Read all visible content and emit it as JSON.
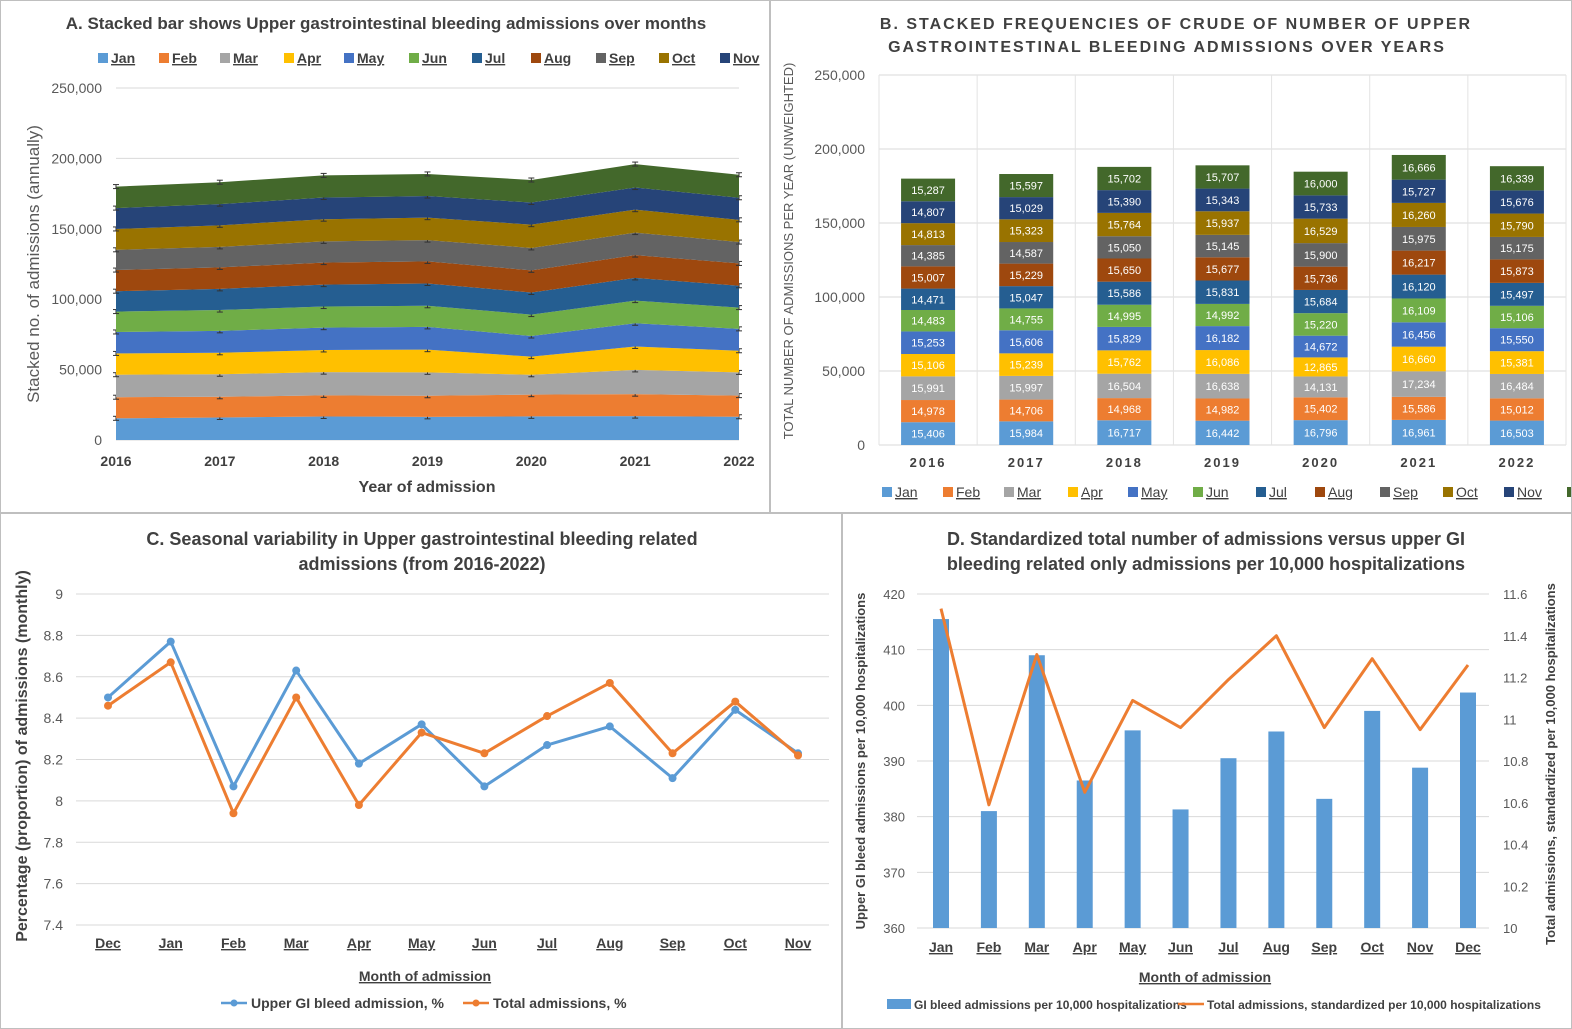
{
  "palette": {
    "Jan": "#5b9bd5",
    "Feb": "#ed7d31",
    "Mar": "#a5a5a5",
    "Apr": "#ffc000",
    "May": "#4472c4",
    "Jun": "#70ad47",
    "Jul": "#255e91",
    "Aug": "#9e480e",
    "Sep": "#636363",
    "Oct": "#997300",
    "Nov": "#264478",
    "Dec": "#43682b"
  },
  "chart_data": [
    {
      "id": "A",
      "type": "area",
      "title": "A. Stacked bar shows Upper gastrointestinal bleeding admissions over months",
      "xlabel": "Year of admission",
      "ylabel": "Stacked no. of admissions (annually)",
      "ylim": [
        0,
        250000
      ],
      "yticks": [
        "0",
        "50,000",
        "100,000",
        "150,000",
        "200,000",
        "250,000"
      ],
      "grid": true,
      "legend": "top",
      "categories": [
        "2016",
        "2017",
        "2018",
        "2019",
        "2020",
        "2021",
        "2022"
      ],
      "series_ref": "B"
    },
    {
      "id": "B",
      "type": "bar",
      "stacked": true,
      "title_lines": [
        "B. STACKED FREQUENCIES OF CRUDE OF NUMBER OF UPPER",
        "GASTROINTESTINAL BLEEDING ADMISSIONS OVER YEARS"
      ],
      "ylabel": "TOTAL NUMBER OF ADMISSIONS PER YEAR (UNWEIGHTED)",
      "ylim": [
        0,
        250000
      ],
      "yticks": [
        "0",
        "50,000",
        "100,000",
        "150,000",
        "200,000",
        "250,000"
      ],
      "grid": true,
      "legend": "bottom",
      "categories": [
        "2016",
        "2017",
        "2018",
        "2019",
        "2020",
        "2021",
        "2022"
      ],
      "series": [
        {
          "name": "Jan",
          "values": [
            15406,
            15984,
            16717,
            16442,
            16796,
            16961,
            16503
          ],
          "labels": [
            "15,406",
            "15,984",
            "16,717",
            "16,442",
            "16,796",
            "16,961",
            "16,503"
          ]
        },
        {
          "name": "Feb",
          "values": [
            14978,
            14706,
            14968,
            14982,
            15402,
            15586,
            15012
          ],
          "labels": [
            "14,978",
            "14,706",
            "14,968",
            "14,982",
            "15,402",
            "15,586",
            "15,012"
          ]
        },
        {
          "name": "Mar",
          "values": [
            15991,
            15997,
            16504,
            16638,
            14131,
            17234,
            16484
          ],
          "labels": [
            "15,991",
            "15,997",
            "16,504",
            "16,638",
            "14,131",
            "17,234",
            "16,484"
          ]
        },
        {
          "name": "Apr",
          "values": [
            15106,
            15239,
            15762,
            16086,
            12865,
            16660,
            15381
          ],
          "labels": [
            "15,106",
            "15,239",
            "15,762",
            "16,086",
            "12,865",
            "16,660",
            "15,381"
          ]
        },
        {
          "name": "May",
          "values": [
            15253,
            15606,
            15829,
            16182,
            14672,
            16456,
            15550
          ],
          "labels": [
            "15,253",
            "15,606",
            "15,829",
            "16,182",
            "14,672",
            "16,456",
            "15,550"
          ]
        },
        {
          "name": "Jun",
          "values": [
            14483,
            14755,
            14995,
            14992,
            15220,
            16109,
            15106
          ],
          "labels": [
            "14,483",
            "14,755",
            "14,995",
            "14,992",
            "15,220",
            "16,109",
            "15,106"
          ]
        },
        {
          "name": "Jul",
          "values": [
            14471,
            15047,
            15586,
            15831,
            15684,
            16120,
            15497
          ],
          "labels": [
            "14,471",
            "15,047",
            "15,586",
            "15,831",
            "15,684",
            "16,120",
            "15,497"
          ]
        },
        {
          "name": "Aug",
          "values": [
            15007,
            15229,
            15650,
            15677,
            15736,
            16217,
            15873
          ],
          "labels": [
            "15,007",
            "15,229",
            "15,650",
            "15,677",
            "15,736",
            "16,217",
            "15,873"
          ]
        },
        {
          "name": "Sep",
          "values": [
            14385,
            14587,
            15050,
            15145,
            15900,
            15975,
            15175
          ],
          "labels": [
            "14,385",
            "14,587",
            "15,050",
            "15,145",
            "15,900",
            "15,975",
            "15,175"
          ]
        },
        {
          "name": "Oct",
          "values": [
            14813,
            15323,
            15764,
            15937,
            16529,
            16260,
            15790
          ],
          "labels": [
            "14,813",
            "15,323",
            "15,764",
            "15,937",
            "16,529",
            "16,260",
            "15,790"
          ]
        },
        {
          "name": "Nov",
          "values": [
            14807,
            15029,
            15390,
            15343,
            15733,
            15727,
            15676
          ],
          "labels": [
            "14,807",
            "15,029",
            "15,390",
            "15,343",
            "15,733",
            "15,727",
            "15,676"
          ]
        },
        {
          "name": "Dec",
          "values": [
            15287,
            15597,
            15702,
            15707,
            16000,
            16666,
            16339
          ],
          "labels": [
            "15,287",
            "15,597",
            "15,702",
            "15,707",
            "16,000",
            "16,666",
            "16,339"
          ]
        }
      ]
    },
    {
      "id": "C",
      "type": "line",
      "title_lines": [
        "C. Seasonal variability in Upper gastrointestinal bleeding related",
        "admissions (from 2016-2022)"
      ],
      "xlabel": "Month of admission",
      "ylabel": "Percentage (proportion) of admissions (monthly)",
      "ylim": [
        7.4,
        9.0
      ],
      "yticks": [
        "7.4",
        "7.6",
        "7.8",
        "8",
        "8.2",
        "8.4",
        "8.6",
        "8.8",
        "9"
      ],
      "grid": true,
      "legend": "bottom",
      "categories": [
        "Dec",
        "Jan",
        "Feb",
        "Mar",
        "Apr",
        "May",
        "Jun",
        "Jul",
        "Aug",
        "Sep",
        "Oct",
        "Nov"
      ],
      "series": [
        {
          "name": "Upper GI bleed admission, %",
          "color": "#5b9bd5",
          "values": [
            8.5,
            8.77,
            8.07,
            8.63,
            8.18,
            8.37,
            8.07,
            8.27,
            8.36,
            8.11,
            8.44,
            8.23
          ]
        },
        {
          "name": "Total admissions, %",
          "color": "#ed7d31",
          "values": [
            8.46,
            8.67,
            7.94,
            8.5,
            7.98,
            8.33,
            8.23,
            8.41,
            8.57,
            8.23,
            8.48,
            8.22
          ]
        }
      ]
    },
    {
      "id": "D",
      "type": "bar",
      "title_lines": [
        "D. Standardized total number of admissions versus upper GI",
        "bleeding related only admissions per 10,000 hospitalizations"
      ],
      "xlabel": "Month of admission",
      "ylabel": "Upper GI bleed admissions per 10,000 hospitalizations",
      "y2label": "Total admissions,  standardized per 10,000 hospitalizations",
      "ylim": [
        360,
        420
      ],
      "y2lim": [
        10,
        11.6
      ],
      "yticks": [
        "360",
        "370",
        "380",
        "390",
        "400",
        "410",
        "420"
      ],
      "y2ticks": [
        "10",
        "10.2",
        "10.4",
        "10.6",
        "10.8",
        "11",
        "11.2",
        "11.4",
        "11.6"
      ],
      "grid": true,
      "legend": "bottom",
      "categories": [
        "Jan",
        "Feb",
        "Mar",
        "Apr",
        "May",
        "Jun",
        "Jul",
        "Aug",
        "Sep",
        "Oct",
        "Nov",
        "Dec"
      ],
      "series": [
        {
          "name": "GI bleed admissions per 10,000 hospitalizations",
          "type": "bar",
          "axis": "left",
          "color": "#5b9bd5",
          "values": [
            415.5,
            381,
            409,
            386.5,
            395.5,
            381.3,
            390.5,
            395.3,
            383.2,
            399,
            388.8,
            402.3
          ]
        },
        {
          "name": "Total admissions,  standardized per 10,000 hospitalizations",
          "type": "line",
          "axis": "right",
          "color": "#ed7d31",
          "values": [
            11.53,
            10.59,
            11.31,
            10.65,
            11.09,
            10.96,
            11.19,
            11.4,
            10.96,
            11.29,
            10.95,
            11.26
          ]
        }
      ]
    }
  ]
}
